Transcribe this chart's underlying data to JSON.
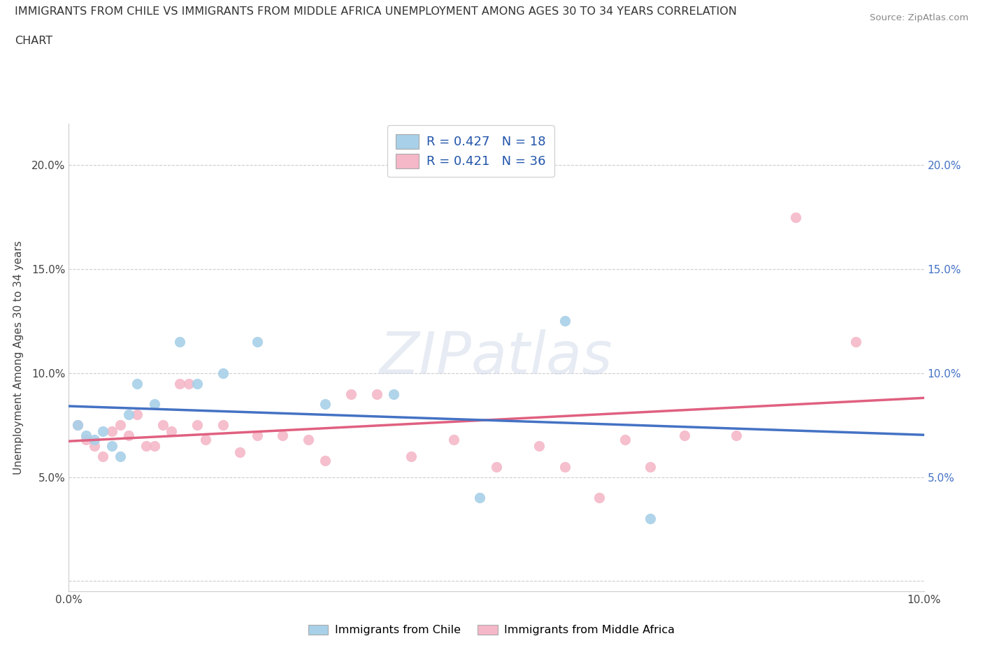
{
  "title_line1": "IMMIGRANTS FROM CHILE VS IMMIGRANTS FROM MIDDLE AFRICA UNEMPLOYMENT AMONG AGES 30 TO 34 YEARS CORRELATION",
  "title_line2": "CHART",
  "source_text": "Source: ZipAtlas.com",
  "ylabel": "Unemployment Among Ages 30 to 34 years",
  "xlim": [
    0.0,
    0.1
  ],
  "ylim": [
    -0.005,
    0.22
  ],
  "xticks": [
    0.0,
    0.02,
    0.04,
    0.06,
    0.08,
    0.1
  ],
  "xticklabels": [
    "0.0%",
    "",
    "",
    "",
    "",
    "10.0%"
  ],
  "yticks": [
    0.0,
    0.05,
    0.1,
    0.15,
    0.2
  ],
  "yticklabels": [
    "",
    "5.0%",
    "10.0%",
    "15.0%",
    "20.0%"
  ],
  "chile_color": "#a8d0e8",
  "middle_africa_color": "#f4b8c8",
  "chile_line_color": "#4472c4",
  "middle_africa_line_color": "#e06080",
  "watermark": "ZIPatlas",
  "legend_R_chile": "0.427",
  "legend_N_chile": "18",
  "legend_R_africa": "0.421",
  "legend_N_africa": "36",
  "chile_scatter_x": [
    0.001,
    0.002,
    0.003,
    0.004,
    0.005,
    0.006,
    0.007,
    0.008,
    0.01,
    0.013,
    0.015,
    0.018,
    0.022,
    0.03,
    0.038,
    0.048,
    0.058,
    0.068
  ],
  "chile_scatter_y": [
    0.075,
    0.07,
    0.068,
    0.072,
    0.065,
    0.06,
    0.08,
    0.095,
    0.085,
    0.115,
    0.095,
    0.1,
    0.115,
    0.085,
    0.09,
    0.04,
    0.125,
    0.03
  ],
  "middle_africa_scatter_x": [
    0.001,
    0.002,
    0.003,
    0.004,
    0.005,
    0.006,
    0.007,
    0.008,
    0.009,
    0.01,
    0.011,
    0.012,
    0.013,
    0.014,
    0.015,
    0.016,
    0.018,
    0.02,
    0.022,
    0.025,
    0.028,
    0.03,
    0.033,
    0.036,
    0.04,
    0.045,
    0.05,
    0.055,
    0.058,
    0.062,
    0.065,
    0.068,
    0.072,
    0.078,
    0.085,
    0.092
  ],
  "middle_africa_scatter_y": [
    0.075,
    0.068,
    0.065,
    0.06,
    0.072,
    0.075,
    0.07,
    0.08,
    0.065,
    0.065,
    0.075,
    0.072,
    0.095,
    0.095,
    0.075,
    0.068,
    0.075,
    0.062,
    0.07,
    0.07,
    0.068,
    0.058,
    0.09,
    0.09,
    0.06,
    0.068,
    0.055,
    0.065,
    0.055,
    0.04,
    0.068,
    0.055,
    0.07,
    0.07,
    0.175,
    0.115
  ]
}
